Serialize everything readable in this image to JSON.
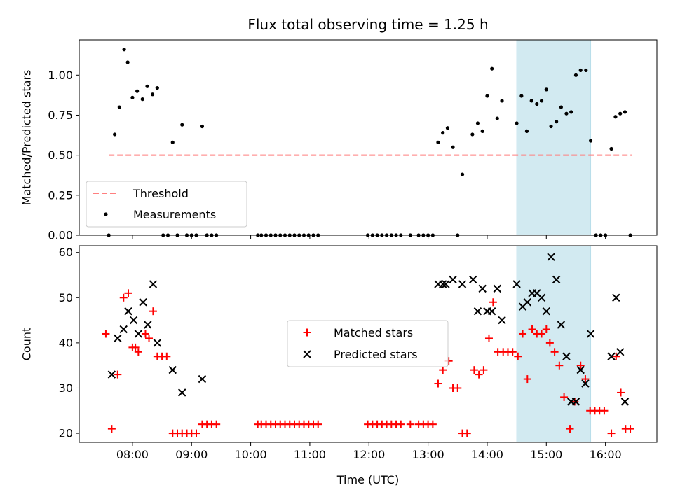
{
  "chart_data": [
    {
      "type": "scatter",
      "title": "Flux total observing time = 1.25 h",
      "xlabel": "",
      "ylabel": "Matched/Predicted stars",
      "xlim": [
        7.1,
        16.87
      ],
      "ylim": [
        0.0,
        1.22
      ],
      "yticks": [
        0.0,
        0.25,
        0.5,
        0.75,
        1.0
      ],
      "ytick_labels": [
        "0.00",
        "0.25",
        "0.50",
        "0.75",
        "1.00"
      ],
      "xticks": [
        8,
        9,
        10,
        11,
        12,
        13,
        14,
        15,
        16
      ],
      "highlight_span": {
        "x0": 14.5,
        "x1": 15.75,
        "color": "#add8e6"
      },
      "legend": {
        "position": "lower-left",
        "entries": [
          {
            "label": "Threshold",
            "style": "dashed-line",
            "color": "#ff7f7f"
          },
          {
            "label": "Measurements",
            "style": "dot",
            "color": "#000000"
          }
        ]
      },
      "series": [
        {
          "name": "Threshold",
          "kind": "dashed-line",
          "color": "#ff7f7f",
          "x": [
            7.6,
            16.45
          ],
          "y": [
            0.5,
            0.5
          ]
        },
        {
          "name": "Measurements",
          "kind": "dot",
          "color": "#000000",
          "x": [
            7.6,
            7.7,
            7.78,
            7.86,
            7.92,
            8.0,
            8.08,
            8.17,
            8.25,
            8.34,
            8.42,
            8.52,
            8.6,
            8.68,
            8.76,
            8.84,
            8.92,
            9.0,
            9.08,
            9.18,
            9.26,
            9.34,
            9.42,
            10.12,
            10.18,
            10.26,
            10.34,
            10.42,
            10.5,
            10.58,
            10.66,
            10.74,
            10.82,
            10.9,
            10.98,
            11.06,
            11.14,
            11.98,
            12.06,
            12.14,
            12.22,
            12.3,
            12.38,
            12.46,
            12.54,
            12.7,
            12.84,
            12.92,
            13.0,
            13.08,
            13.17,
            13.25,
            13.33,
            13.42,
            13.5,
            13.58,
            13.75,
            13.84,
            13.92,
            14.0,
            14.08,
            14.17,
            14.25,
            14.5,
            14.58,
            14.67,
            14.75,
            14.84,
            14.92,
            15.0,
            15.08,
            15.17,
            15.25,
            15.34,
            15.42,
            15.5,
            15.58,
            15.67,
            15.75,
            15.84,
            15.92,
            16.0,
            16.1,
            16.17,
            16.25,
            16.33,
            16.42
          ],
          "y": [
            0.0,
            0.63,
            0.8,
            1.16,
            1.08,
            0.86,
            0.9,
            0.85,
            0.93,
            0.88,
            0.92,
            0.0,
            0.0,
            0.58,
            0.0,
            0.69,
            0.0,
            0.0,
            0.0,
            0.68,
            0.0,
            0.0,
            0.0,
            0.0,
            0.0,
            0.0,
            0.0,
            0.0,
            0.0,
            0.0,
            0.0,
            0.0,
            0.0,
            0.0,
            0.0,
            0.0,
            0.0,
            0.0,
            0.0,
            0.0,
            0.0,
            0.0,
            0.0,
            0.0,
            0.0,
            0.0,
            0.0,
            0.0,
            0.0,
            0.0,
            0.58,
            0.64,
            0.67,
            0.55,
            0.0,
            0.38,
            0.63,
            0.7,
            0.65,
            0.87,
            1.04,
            0.73,
            0.84,
            0.7,
            0.87,
            0.65,
            0.84,
            0.82,
            0.84,
            0.91,
            0.68,
            0.71,
            0.8,
            0.76,
            0.77,
            1.0,
            1.03,
            1.03,
            0.59,
            0.0,
            0.0,
            0.0,
            0.54,
            0.74,
            0.76,
            0.77,
            0.0
          ]
        }
      ]
    },
    {
      "type": "scatter",
      "title": "",
      "xlabel": "Time (UTC)",
      "ylabel": "Count",
      "xlim": [
        7.1,
        16.87
      ],
      "ylim": [
        18,
        61.5
      ],
      "yticks": [
        20,
        30,
        40,
        50,
        60
      ],
      "ytick_labels": [
        "20",
        "30",
        "40",
        "50",
        "60"
      ],
      "xticks": [
        8,
        9,
        10,
        11,
        12,
        13,
        14,
        15,
        16
      ],
      "xtick_labels": [
        "08:00",
        "09:00",
        "10:00",
        "11:00",
        "12:00",
        "13:00",
        "14:00",
        "15:00",
        "16:00"
      ],
      "highlight_span": {
        "x0": 14.5,
        "x1": 15.75,
        "color": "#add8e6"
      },
      "legend": {
        "position": "center",
        "entries": [
          {
            "label": "Matched stars",
            "style": "plus",
            "color": "#ff0000"
          },
          {
            "label": "Predicted stars",
            "style": "cross",
            "color": "#000000"
          }
        ]
      },
      "series": [
        {
          "name": "Matched stars",
          "marker": "plus",
          "color": "#ff0000",
          "x": [
            7.55,
            7.65,
            7.75,
            7.85,
            7.93,
            8.0,
            8.05,
            8.1,
            8.22,
            8.28,
            8.35,
            8.42,
            8.5,
            8.58,
            8.68,
            8.76,
            8.84,
            8.92,
            9.0,
            9.08,
            9.18,
            9.26,
            9.34,
            9.42,
            10.12,
            10.18,
            10.26,
            10.34,
            10.42,
            10.5,
            10.58,
            10.66,
            10.74,
            10.82,
            10.9,
            10.98,
            11.06,
            11.14,
            11.98,
            12.06,
            12.14,
            12.22,
            12.3,
            12.38,
            12.46,
            12.54,
            12.7,
            12.84,
            12.92,
            13.0,
            13.08,
            13.17,
            13.25,
            13.35,
            13.42,
            13.5,
            13.58,
            13.66,
            13.78,
            13.86,
            13.94,
            14.03,
            14.1,
            14.18,
            14.27,
            14.35,
            14.43,
            14.52,
            14.6,
            14.68,
            14.76,
            14.84,
            14.92,
            15.0,
            15.06,
            15.14,
            15.22,
            15.3,
            15.4,
            15.48,
            15.58,
            15.66,
            15.74,
            15.82,
            15.9,
            15.98,
            16.1,
            16.18,
            16.26,
            16.34,
            16.42
          ],
          "y": [
            42,
            21,
            33,
            50,
            51,
            39,
            39,
            38,
            42,
            41,
            47,
            37,
            37,
            37,
            20,
            20,
            20,
            20,
            20,
            20,
            22,
            22,
            22,
            22,
            22,
            22,
            22,
            22,
            22,
            22,
            22,
            22,
            22,
            22,
            22,
            22,
            22,
            22,
            22,
            22,
            22,
            22,
            22,
            22,
            22,
            22,
            22,
            22,
            22,
            22,
            22,
            31,
            34,
            36,
            30,
            30,
            20,
            20,
            34,
            33,
            34,
            41,
            49,
            38,
            38,
            38,
            38,
            37,
            42,
            32,
            43,
            42,
            42,
            43,
            40,
            38,
            35,
            28,
            21,
            27,
            35,
            32,
            25,
            25,
            25,
            25,
            20,
            37,
            29,
            21,
            21
          ]
        },
        {
          "name": "Predicted stars",
          "marker": "cross",
          "color": "#000000",
          "x": [
            7.65,
            7.75,
            7.85,
            7.93,
            8.02,
            8.1,
            8.18,
            8.26,
            8.35,
            8.42,
            8.68,
            8.84,
            9.18,
            13.17,
            13.25,
            13.3,
            13.42,
            13.58,
            13.76,
            13.84,
            13.92,
            14.0,
            14.08,
            14.17,
            14.25,
            14.5,
            14.6,
            14.68,
            14.76,
            14.84,
            14.92,
            15.0,
            15.08,
            15.17,
            15.25,
            15.34,
            15.42,
            15.5,
            15.58,
            15.66,
            15.75,
            16.1,
            16.18,
            16.25,
            16.33
          ],
          "y": [
            33,
            41,
            43,
            47,
            45,
            42,
            49,
            44,
            53,
            40,
            34,
            29,
            32,
            53,
            53,
            53,
            54,
            53,
            54,
            47,
            52,
            47,
            47,
            52,
            45,
            53,
            48,
            49,
            51,
            51,
            50,
            47,
            59,
            54,
            44,
            37,
            27,
            27,
            34,
            31,
            42,
            37,
            50,
            38,
            27
          ]
        }
      ]
    }
  ]
}
